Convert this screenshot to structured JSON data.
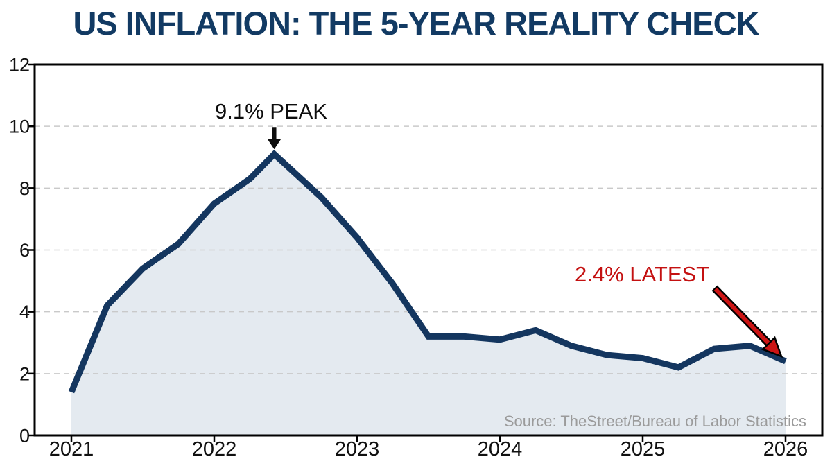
{
  "title": "US INFLATION: THE 5-YEAR REALITY CHECK",
  "annotations": {
    "peak": "9.1% PEAK",
    "latest": "2.4% LATEST"
  },
  "source": "Source: TheStreet/Bureau of Labor Statistics",
  "colors": {
    "title": "#123a63",
    "line": "#14365f",
    "fill": "#e4eaf0",
    "peak_text": "#0d0d0d",
    "peak_arrow": "#0d0d0d",
    "latest_text": "#c41111",
    "arrow_red": "#cc1414",
    "source_text": "#9b9b9b",
    "grid": "#c9c9c9",
    "axis": "#000000",
    "tick_label": "#111111"
  },
  "chart_data": {
    "type": "area",
    "title": "US INFLATION: THE 5-YEAR REALITY CHECK",
    "x": [
      2021.0,
      2021.25,
      2021.5,
      2021.75,
      2022.0,
      2022.25,
      2022.42,
      2022.75,
      2023.0,
      2023.25,
      2023.5,
      2023.75,
      2024.0,
      2024.25,
      2024.5,
      2024.75,
      2025.0,
      2025.25,
      2025.5,
      2025.75,
      2026.0
    ],
    "values": [
      1.4,
      4.2,
      5.4,
      6.2,
      7.5,
      8.3,
      9.1,
      7.7,
      6.4,
      4.9,
      3.2,
      3.2,
      3.1,
      3.4,
      2.9,
      2.6,
      2.5,
      2.2,
      2.8,
      2.9,
      2.4
    ],
    "xticks": [
      "2021",
      "2022",
      "2023",
      "2024",
      "2025",
      "2026"
    ],
    "yticks": [
      0,
      2,
      4,
      6,
      8,
      10,
      12
    ],
    "xlim": [
      2020.74,
      2026.26
    ],
    "ylim": [
      0,
      12
    ],
    "xlabel": "",
    "ylabel": "",
    "grid": "horizontal-dashed",
    "legend": "none",
    "annotations": [
      {
        "text": "9.1% PEAK",
        "x": 2022.42,
        "y": 9.1,
        "arrow": "black-down-arrow"
      },
      {
        "text": "2.4% LATEST",
        "x": 2026.0,
        "y": 2.4,
        "arrow": "red-diagonal-arrow"
      }
    ],
    "source": "Source: TheStreet/Bureau of Labor Statistics"
  }
}
